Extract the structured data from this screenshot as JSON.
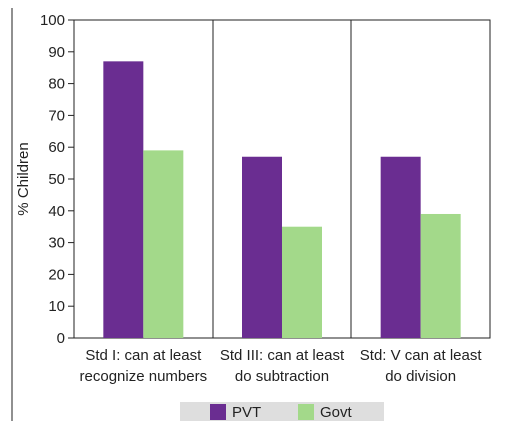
{
  "chart_data": {
    "type": "bar",
    "title": "",
    "xlabel": "",
    "ylabel": "% Children",
    "ylim": [
      0,
      100
    ],
    "yticks": [
      0,
      10,
      20,
      30,
      40,
      50,
      60,
      70,
      80,
      90,
      100
    ],
    "grid": false,
    "legend_position": "bottom",
    "categories": [
      [
        "Std I: can at least",
        "recognize numbers"
      ],
      [
        "Std III: can at least",
        "do subtraction"
      ],
      [
        "Std: V can at least",
        "do division"
      ]
    ],
    "series": [
      {
        "name": "PVT",
        "color": "#6a2d91",
        "values": [
          87,
          57,
          57
        ]
      },
      {
        "name": "Govt",
        "color": "#a3d98a",
        "values": [
          59,
          35,
          39
        ]
      }
    ]
  }
}
